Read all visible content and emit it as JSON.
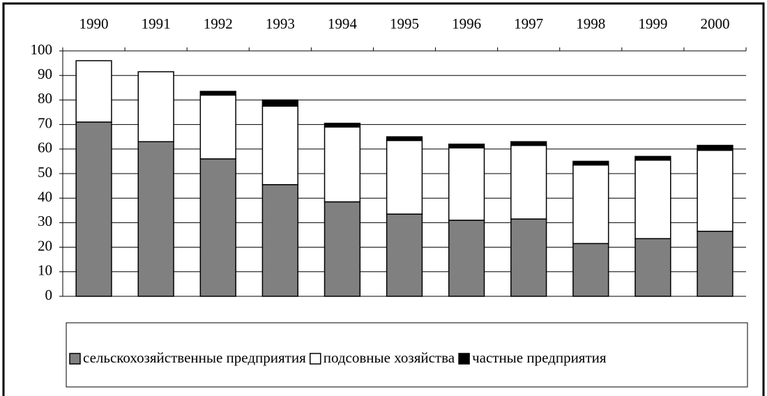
{
  "chart_data": {
    "type": "stacked-bar",
    "categories": [
      "1990",
      "1991",
      "1992",
      "1993",
      "1994",
      "1995",
      "1996",
      "1997",
      "1998",
      "1999",
      "2000"
    ],
    "series": [
      {
        "name": "сельскохозяйственные предприятия",
        "color": "#808080",
        "values": [
          71,
          63,
          56,
          45.5,
          38.5,
          33.5,
          31,
          31.5,
          21.5,
          23.5,
          26.5
        ]
      },
      {
        "name": "подсовные хозяйства",
        "color": "#ffffff",
        "values": [
          25,
          28.5,
          26,
          32,
          30.5,
          30,
          29.5,
          30,
          32,
          32,
          33
        ]
      },
      {
        "name": "частные предприятия",
        "color": "#000000",
        "values": [
          0,
          0,
          1.5,
          2.5,
          1.5,
          1.5,
          1.5,
          1.5,
          1.5,
          1.5,
          2
        ]
      }
    ],
    "ylim": [
      0,
      100
    ],
    "yticks": [
      0,
      10,
      20,
      30,
      40,
      50,
      60,
      70,
      80,
      90,
      100
    ],
    "grid": true,
    "category_axis_side": "top",
    "legend": "bottom"
  }
}
